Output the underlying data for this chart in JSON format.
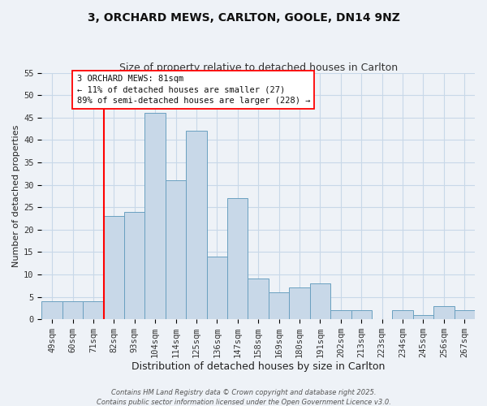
{
  "title": "3, ORCHARD MEWS, CARLTON, GOOLE, DN14 9NZ",
  "subtitle": "Size of property relative to detached houses in Carlton",
  "xlabel": "Distribution of detached houses by size in Carlton",
  "ylabel": "Number of detached properties",
  "bar_color": "#c8d8e8",
  "bar_edge_color": "#6aa0c0",
  "grid_color": "#c8d8e8",
  "background_color": "#eef2f7",
  "plot_bg_color": "#eef2f7",
  "categories": [
    "49sqm",
    "60sqm",
    "71sqm",
    "82sqm",
    "93sqm",
    "104sqm",
    "114sqm",
    "125sqm",
    "136sqm",
    "147sqm",
    "158sqm",
    "169sqm",
    "180sqm",
    "191sqm",
    "202sqm",
    "213sqm",
    "223sqm",
    "234sqm",
    "245sqm",
    "256sqm",
    "267sqm"
  ],
  "values": [
    4,
    4,
    4,
    23,
    24,
    46,
    31,
    42,
    14,
    27,
    9,
    6,
    7,
    8,
    2,
    2,
    0,
    2,
    1,
    3,
    2
  ],
  "ylim": [
    0,
    55
  ],
  "yticks": [
    0,
    5,
    10,
    15,
    20,
    25,
    30,
    35,
    40,
    45,
    50,
    55
  ],
  "property_line_label": "3 ORCHARD MEWS: 81sqm",
  "annotation_line1": "← 11% of detached houses are smaller (27)",
  "annotation_line2": "89% of semi-detached houses are larger (228) →",
  "footer1": "Contains HM Land Registry data © Crown copyright and database right 2025.",
  "footer2": "Contains public sector information licensed under the Open Government Licence v3.0.",
  "line_x_index": 3,
  "title_fontsize": 10,
  "subtitle_fontsize": 9,
  "xlabel_fontsize": 9,
  "ylabel_fontsize": 8,
  "tick_fontsize": 7.5,
  "footer_fontsize": 6
}
